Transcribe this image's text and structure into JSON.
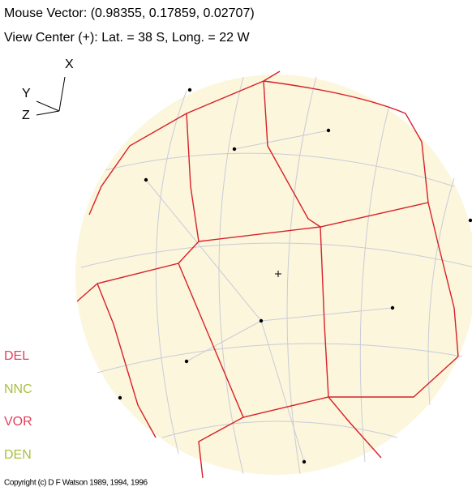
{
  "header": {
    "mouse_vector": "Mouse Vector:  (0.98355, 0.17859, 0.02707)",
    "view_center": "View Center (+):  Lat. = 38 S,  Long. = 22 W"
  },
  "axes": {
    "x": "X",
    "y": "Y",
    "z": "Z"
  },
  "menu": [
    "DEL",
    "NNC",
    "VOR",
    "DEN"
  ],
  "copyright": "Copyright (c) D F Watson 1989, 1994, 1996"
}
